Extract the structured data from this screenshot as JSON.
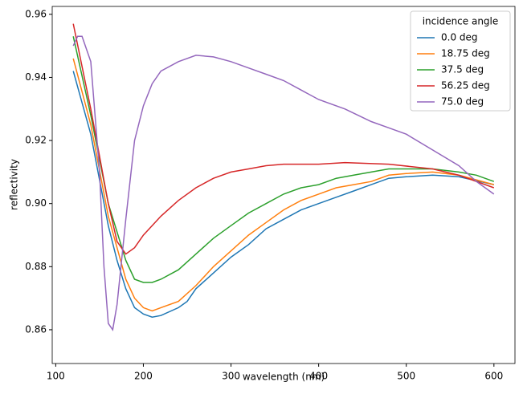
{
  "chart_data": {
    "type": "line",
    "xlabel": "wavelength (nm)",
    "ylabel": "reflectivity",
    "legend_title": "incidence angle",
    "legend_loc": "upper right",
    "xlim": [
      96,
      624
    ],
    "ylim": [
      0.8493,
      0.9625
    ],
    "xticks": [
      100,
      200,
      300,
      400,
      500,
      600
    ],
    "yticks": [
      0.86,
      0.88,
      {
        "value": 0.9,
        "label": "0.90"
      },
      0.92,
      0.94,
      0.96
    ],
    "series": [
      {
        "name": "0.0 deg",
        "color": "#1f77b4",
        "x": [
          120,
          140,
          160,
          170,
          180,
          190,
          200,
          210,
          220,
          240,
          250,
          260,
          280,
          300,
          320,
          340,
          360,
          380,
          400,
          420,
          440,
          460,
          480,
          500,
          530,
          560,
          600
        ],
        "values": [
          0.942,
          0.922,
          0.893,
          0.882,
          0.873,
          0.867,
          0.865,
          0.864,
          0.8645,
          0.867,
          0.869,
          0.873,
          0.878,
          0.883,
          0.887,
          0.892,
          0.895,
          0.898,
          0.9,
          0.902,
          0.904,
          0.906,
          0.908,
          0.9085,
          0.909,
          0.9085,
          0.906
        ]
      },
      {
        "name": "18.75 deg",
        "color": "#ff7f0e",
        "x": [
          120,
          140,
          160,
          180,
          190,
          200,
          210,
          220,
          240,
          260,
          280,
          300,
          320,
          340,
          360,
          380,
          400,
          420,
          440,
          460,
          480,
          500,
          530,
          560,
          600
        ],
        "values": [
          0.946,
          0.925,
          0.896,
          0.876,
          0.87,
          0.867,
          0.866,
          0.867,
          0.869,
          0.874,
          0.88,
          0.885,
          0.89,
          0.894,
          0.898,
          0.901,
          0.903,
          0.905,
          0.906,
          0.907,
          0.909,
          0.9095,
          0.91,
          0.909,
          0.906
        ]
      },
      {
        "name": "37.5 deg",
        "color": "#2ca02c",
        "x": [
          120,
          140,
          160,
          180,
          190,
          200,
          210,
          220,
          240,
          260,
          280,
          300,
          320,
          340,
          360,
          380,
          400,
          420,
          440,
          460,
          480,
          500,
          530,
          560,
          580,
          600
        ],
        "values": [
          0.953,
          0.928,
          0.9,
          0.882,
          0.876,
          0.875,
          0.875,
          0.876,
          0.879,
          0.884,
          0.889,
          0.893,
          0.897,
          0.9,
          0.903,
          0.905,
          0.906,
          0.908,
          0.909,
          0.91,
          0.911,
          0.911,
          0.911,
          0.91,
          0.909,
          0.907
        ]
      },
      {
        "name": "56.25 deg",
        "color": "#d62728",
        "x": [
          120,
          140,
          160,
          170,
          180,
          190,
          200,
          220,
          240,
          260,
          280,
          300,
          320,
          340,
          360,
          400,
          430,
          480,
          530,
          560,
          600
        ],
        "values": [
          0.957,
          0.93,
          0.9,
          0.888,
          0.884,
          0.886,
          0.89,
          0.896,
          0.901,
          0.905,
          0.908,
          0.91,
          0.911,
          0.912,
          0.9125,
          0.9125,
          0.913,
          0.9125,
          0.911,
          0.909,
          0.905
        ]
      },
      {
        "name": "75.0 deg",
        "color": "#9467bd",
        "x": [
          120,
          125,
          130,
          140,
          150,
          155,
          160,
          165,
          170,
          180,
          190,
          200,
          210,
          220,
          240,
          260,
          280,
          300,
          320,
          340,
          360,
          380,
          400,
          430,
          460,
          480,
          500,
          530,
          560,
          580,
          600
        ],
        "values": [
          0.95,
          0.953,
          0.953,
          0.945,
          0.91,
          0.88,
          0.862,
          0.86,
          0.868,
          0.895,
          0.92,
          0.931,
          0.938,
          0.942,
          0.945,
          0.947,
          0.9465,
          0.945,
          0.943,
          0.941,
          0.939,
          0.936,
          0.933,
          0.93,
          0.926,
          0.924,
          0.922,
          0.917,
          0.912,
          0.907,
          0.903
        ]
      }
    ]
  }
}
